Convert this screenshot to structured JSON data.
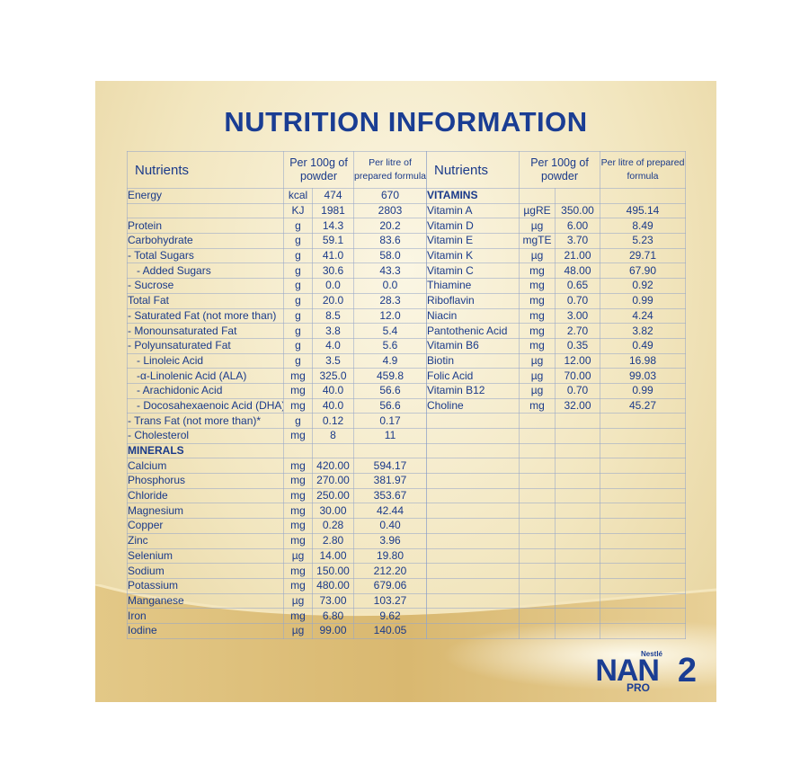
{
  "title": "NUTRITION INFORMATION",
  "headers": {
    "nutrients": "Nutrients",
    "per100g": "Per 100g of powder",
    "perlitre": "Per litre of prepared formula"
  },
  "left": [
    {
      "name": "Energy",
      "unit": "kcal",
      "p100": "474",
      "plit": "670"
    },
    {
      "name": "",
      "unit": "KJ",
      "p100": "1981",
      "plit": "2803"
    },
    {
      "name": "Protein",
      "unit": "g",
      "p100": "14.3",
      "plit": "20.2"
    },
    {
      "name": "Carbohydrate",
      "unit": "g",
      "p100": "59.1",
      "plit": "83.6"
    },
    {
      "name": "- Total Sugars",
      "unit": "g",
      "p100": "41.0",
      "plit": "58.0"
    },
    {
      "name": "   - Added Sugars",
      "unit": "g",
      "p100": "30.6",
      "plit": "43.3"
    },
    {
      "name": "- Sucrose",
      "unit": "g",
      "p100": "0.0",
      "plit": "0.0"
    },
    {
      "name": "Total Fat",
      "unit": "g",
      "p100": "20.0",
      "plit": "28.3"
    },
    {
      "name": "- Saturated Fat (not more than)",
      "unit": "g",
      "p100": "8.5",
      "plit": "12.0"
    },
    {
      "name": "- Monounsaturated Fat",
      "unit": "g",
      "p100": "3.8",
      "plit": "5.4"
    },
    {
      "name": "- Polyunsaturated Fat",
      "unit": "g",
      "p100": "4.0",
      "plit": "5.6"
    },
    {
      "name": "   - Linoleic Acid",
      "unit": "g",
      "p100": "3.5",
      "plit": "4.9"
    },
    {
      "name": "   -α-Linolenic Acid (ALA)",
      "unit": "mg",
      "p100": "325.0",
      "plit": "459.8"
    },
    {
      "name": "   - Arachidonic Acid",
      "unit": "mg",
      "p100": "40.0",
      "plit": "56.6"
    },
    {
      "name": "   - Docosahexaenoic Acid (DHA)",
      "unit": "mg",
      "p100": "40.0",
      "plit": "56.6"
    },
    {
      "name": "- Trans Fat (not more than)*",
      "unit": "g",
      "p100": "0.12",
      "plit": "0.17"
    },
    {
      "name": "- Cholesterol",
      "unit": "mg",
      "p100": "8",
      "plit": "11"
    },
    {
      "name": "MINERALS",
      "unit": "",
      "p100": "",
      "plit": "",
      "section": true
    },
    {
      "name": "Calcium",
      "unit": "mg",
      "p100": "420.00",
      "plit": "594.17"
    },
    {
      "name": "Phosphorus",
      "unit": "mg",
      "p100": "270.00",
      "plit": "381.97"
    },
    {
      "name": "Chloride",
      "unit": "mg",
      "p100": "250.00",
      "plit": "353.67"
    },
    {
      "name": "Magnesium",
      "unit": "mg",
      "p100": "30.00",
      "plit": "42.44"
    },
    {
      "name": "Copper",
      "unit": "mg",
      "p100": "0.28",
      "plit": "0.40"
    },
    {
      "name": "Zinc",
      "unit": "mg",
      "p100": "2.80",
      "plit": "3.96"
    },
    {
      "name": "Selenium",
      "unit": "µg",
      "p100": "14.00",
      "plit": "19.80"
    },
    {
      "name": "Sodium",
      "unit": "mg",
      "p100": "150.00",
      "plit": "212.20"
    },
    {
      "name": "Potassium",
      "unit": "mg",
      "p100": "480.00",
      "plit": "679.06"
    },
    {
      "name": "Manganese",
      "unit": "µg",
      "p100": "73.00",
      "plit": "103.27"
    },
    {
      "name": "Iron",
      "unit": "mg",
      "p100": "6.80",
      "plit": "9.62"
    },
    {
      "name": "Iodine",
      "unit": "µg",
      "p100": "99.00",
      "plit": "140.05"
    }
  ],
  "right": [
    {
      "name": "VITAMINS",
      "unit": "",
      "p100": "",
      "plit": "",
      "section": true
    },
    {
      "name": "Vitamin A",
      "unit": "µgRE",
      "p100": "350.00",
      "plit": "495.14"
    },
    {
      "name": "Vitamin D",
      "unit": "µg",
      "p100": "6.00",
      "plit": "8.49"
    },
    {
      "name": "Vitamin E",
      "unit": "mgTE",
      "p100": "3.70",
      "plit": "5.23"
    },
    {
      "name": "Vitamin K",
      "unit": "µg",
      "p100": "21.00",
      "plit": "29.71"
    },
    {
      "name": "Vitamin C",
      "unit": "mg",
      "p100": "48.00",
      "plit": "67.90"
    },
    {
      "name": "Thiamine",
      "unit": "mg",
      "p100": "0.65",
      "plit": "0.92"
    },
    {
      "name": "Riboflavin",
      "unit": "mg",
      "p100": "0.70",
      "plit": "0.99"
    },
    {
      "name": "Niacin",
      "unit": "mg",
      "p100": "3.00",
      "plit": "4.24"
    },
    {
      "name": "Pantothenic Acid",
      "unit": "mg",
      "p100": "2.70",
      "plit": "3.82"
    },
    {
      "name": "Vitamin B6",
      "unit": "mg",
      "p100": "0.35",
      "plit": "0.49"
    },
    {
      "name": "Biotin",
      "unit": "µg",
      "p100": "12.00",
      "plit": "16.98"
    },
    {
      "name": "Folic Acid",
      "unit": "µg",
      "p100": "70.00",
      "plit": "99.03"
    },
    {
      "name": "Vitamin B12",
      "unit": "µg",
      "p100": "0.70",
      "plit": "0.99"
    },
    {
      "name": "Choline",
      "unit": "mg",
      "p100": "32.00",
      "plit": "45.27"
    }
  ],
  "logo": {
    "brand": "Nestlé",
    "name": "NAN",
    "sub": "PRO",
    "number": "2"
  },
  "colors": {
    "text": "#1a3a8a",
    "background": "#f2e6bf",
    "accent": "#d9b870"
  }
}
